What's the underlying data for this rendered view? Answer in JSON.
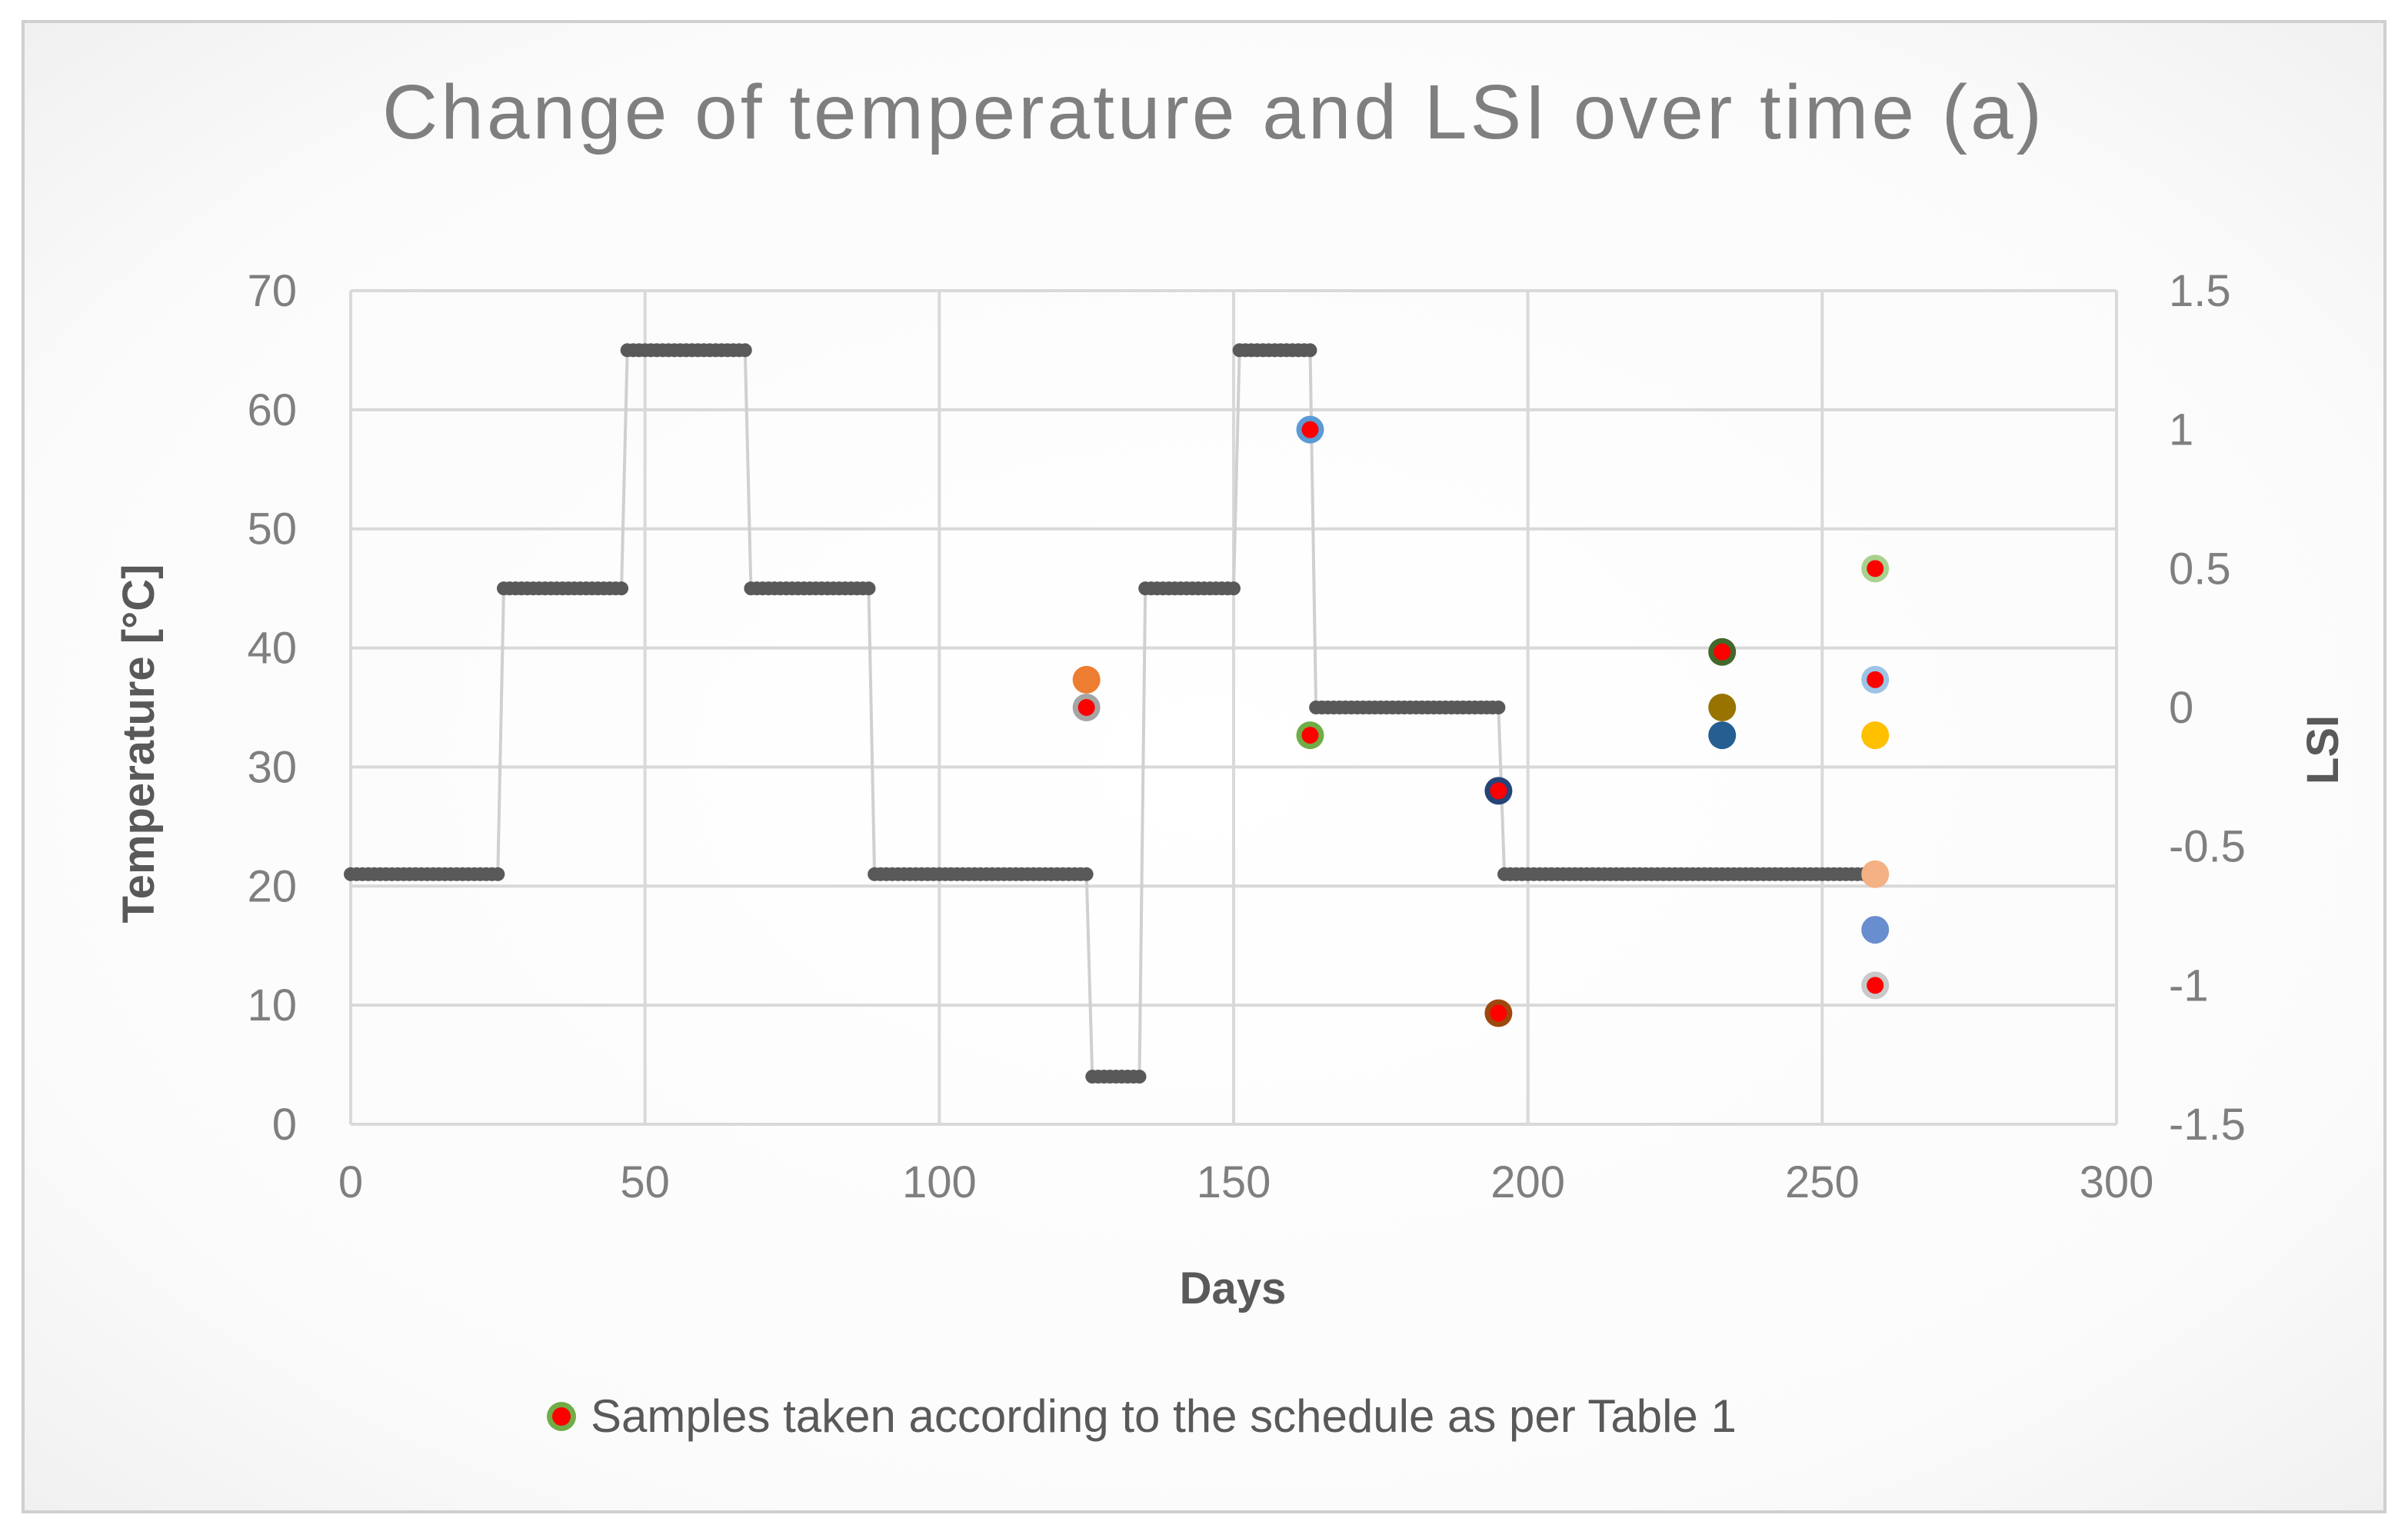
{
  "chart_data": {
    "type": "scatter",
    "title": "Change of temperature and LSI over time (a)",
    "xlabel": "Days",
    "ylabel": "Temperature [°C]",
    "y2label": "LSI",
    "xlim": [
      0,
      300
    ],
    "ylim": [
      0,
      70
    ],
    "y2lim": [
      -1.5,
      1.5
    ],
    "x_ticks": [
      0,
      50,
      100,
      150,
      200,
      250,
      300
    ],
    "y_ticks": [
      0,
      10,
      20,
      30,
      40,
      50,
      60,
      70
    ],
    "y2_ticks": [
      1.5,
      1,
      0.5,
      0,
      -0.5,
      -1,
      -1.5
    ],
    "y2_tick_labels": [
      "1.5",
      "1",
      "0.5",
      "0",
      "-0.5",
      "-1",
      "-1.5"
    ],
    "grid": true,
    "legend": {
      "position": "bottom",
      "entries": [
        "Samples taken according to the schedule as per Table 1"
      ]
    },
    "temperature_series": {
      "name": "Temperature",
      "axis": "left",
      "color": "#595959",
      "segments": [
        {
          "x_start": 0,
          "x_end": 25,
          "y": 21
        },
        {
          "x_start": 26,
          "x_end": 46,
          "y": 45
        },
        {
          "x_start": 47,
          "x_end": 67,
          "y": 65
        },
        {
          "x_start": 68,
          "x_end": 88,
          "y": 45
        },
        {
          "x_start": 89,
          "x_end": 125,
          "y": 21
        },
        {
          "x_start": 126,
          "x_end": 134,
          "y": 4
        },
        {
          "x_start": 135,
          "x_end": 150,
          "y": 45
        },
        {
          "x_start": 151,
          "x_end": 163,
          "y": 65
        },
        {
          "x_start": 164,
          "x_end": 195,
          "y": 35
        },
        {
          "x_start": 196,
          "x_end": 259,
          "y": 21
        }
      ]
    },
    "lsi_series": [
      {
        "day": 125,
        "lsi": 0.1,
        "color": "#ED7D31",
        "scheduled": false
      },
      {
        "day": 125,
        "lsi": 0.0,
        "color": "#A5A5A5",
        "scheduled": true
      },
      {
        "day": 163,
        "lsi": 1.0,
        "color": "#5B9BD5",
        "scheduled": true
      },
      {
        "day": 163,
        "lsi": -0.1,
        "color": "#70AD47",
        "scheduled": true
      },
      {
        "day": 195,
        "lsi": -0.3,
        "color": "#264478",
        "scheduled": true
      },
      {
        "day": 195,
        "lsi": -1.1,
        "color": "#9E480E",
        "scheduled": true
      },
      {
        "day": 233,
        "lsi": 0.2,
        "color": "#43682B",
        "scheduled": true
      },
      {
        "day": 233,
        "lsi": 0.0,
        "color": "#997300",
        "scheduled": false
      },
      {
        "day": 233,
        "lsi": -0.1,
        "color": "#255E91",
        "scheduled": false
      },
      {
        "day": 259,
        "lsi": 0.5,
        "color": "#A9D18E",
        "scheduled": true
      },
      {
        "day": 259,
        "lsi": 0.1,
        "color": "#9DC3E6",
        "scheduled": true
      },
      {
        "day": 259,
        "lsi": -0.1,
        "color": "#FFC000",
        "scheduled": false
      },
      {
        "day": 259,
        "lsi": -0.6,
        "color": "#F4B183",
        "scheduled": false
      },
      {
        "day": 259,
        "lsi": -0.8,
        "color": "#698ED0",
        "scheduled": false
      },
      {
        "day": 259,
        "lsi": -1.0,
        "color": "#C9C9C9",
        "scheduled": true
      }
    ],
    "marker_colors": {
      "sample_center": "#FF0000",
      "sample_ring": "#70AD47",
      "text": "#7F7F7F",
      "text_dark": "#595959"
    }
  }
}
